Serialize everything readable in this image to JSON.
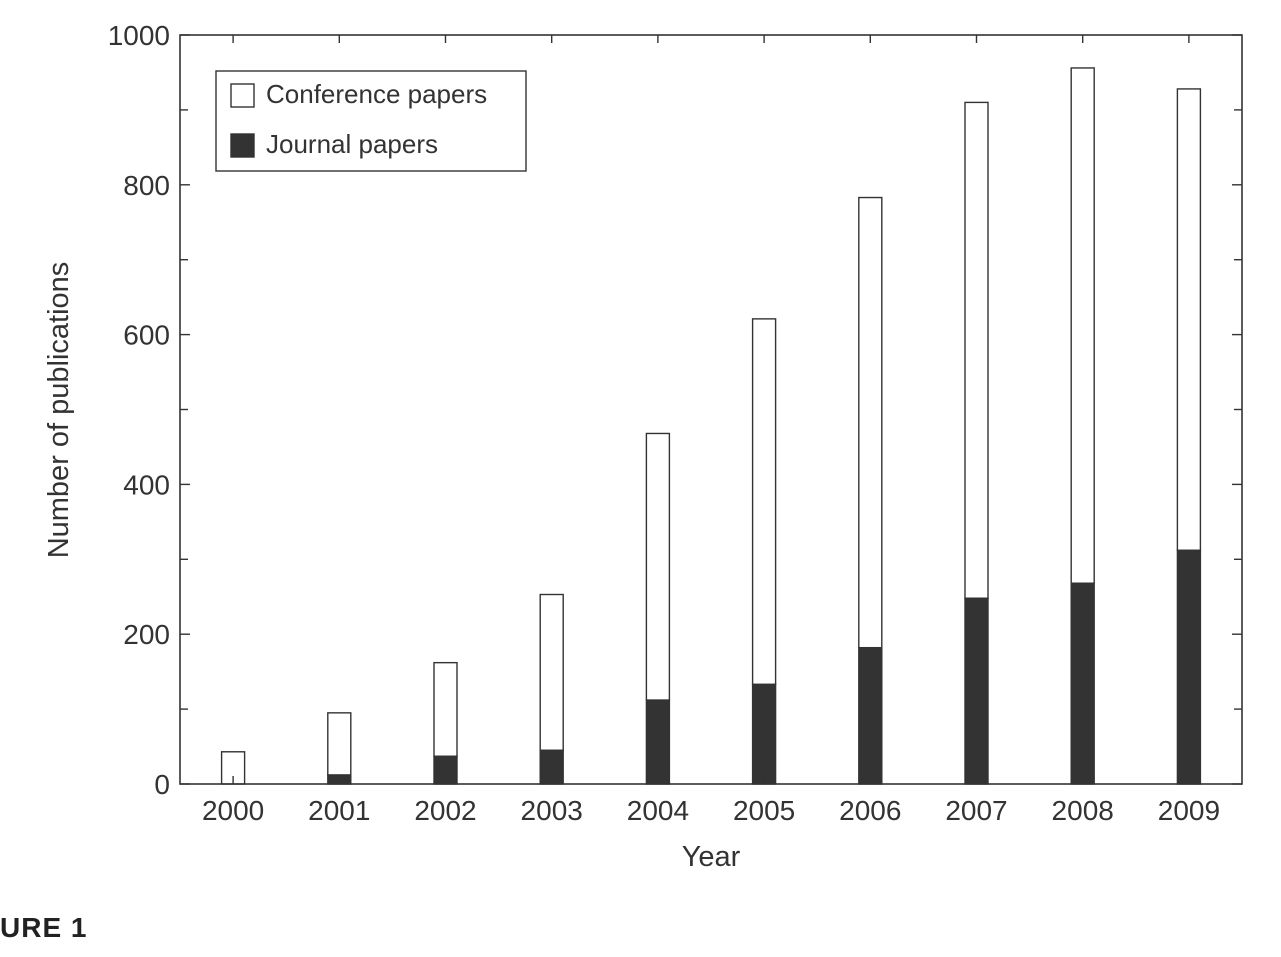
{
  "caption": "URE 1",
  "chart_data": {
    "type": "bar",
    "stacked": true,
    "categories": [
      "2000",
      "2001",
      "2002",
      "2003",
      "2004",
      "2005",
      "2006",
      "2007",
      "2008",
      "2009"
    ],
    "series": [
      {
        "name": "Journal papers",
        "values": [
          0,
          12,
          37,
          45,
          112,
          133,
          182,
          248,
          268,
          312
        ],
        "color": "#333333"
      },
      {
        "name": "Conference papers",
        "values": [
          43,
          83,
          125,
          208,
          356,
          488,
          601,
          662,
          688,
          616
        ],
        "color": "#ffffff"
      }
    ],
    "totals": [
      43,
      95,
      162,
      253,
      468,
      621,
      783,
      910,
      956,
      928
    ],
    "xlabel": "Year",
    "ylabel": "Number of publications",
    "ylim": [
      0,
      1000
    ],
    "yticks": [
      "0",
      "200",
      "400",
      "600",
      "800",
      "1000"
    ],
    "legend": {
      "placement": "top-left",
      "entries": [
        "Conference papers",
        "Journal papers"
      ]
    },
    "grid": false
  }
}
